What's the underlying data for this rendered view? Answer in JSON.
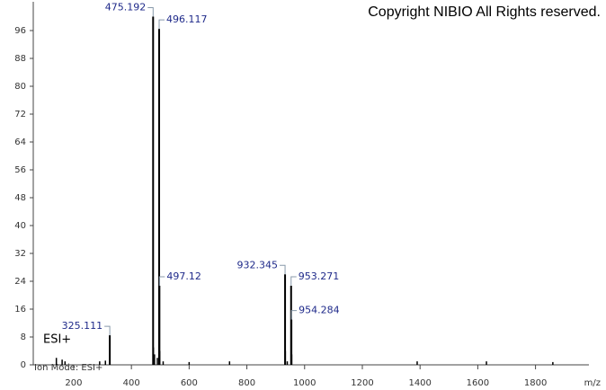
{
  "chart_data": {
    "type": "spectrum",
    "title": "Copyright NIBIO All Rights reserved.",
    "annotation": "ESI+",
    "footer": "Ion Mode: ESI+",
    "x_label": "m/z",
    "x": [
      325.111,
      475.192,
      496.117,
      497.12,
      932.345,
      953.271,
      954.284
    ],
    "values": [
      8.5,
      100,
      96.5,
      22.7,
      26,
      22.7,
      13
    ],
    "minor_x": [
      140,
      160,
      170,
      290,
      310,
      476.2,
      480,
      490,
      498.1,
      510,
      600,
      740,
      933.3,
      940,
      955.3,
      1390,
      1630,
      1860
    ],
    "minor_values": [
      2,
      1.5,
      1,
      1,
      1.2,
      5,
      3,
      2,
      4,
      1,
      0.8,
      1,
      4,
      1,
      3,
      1,
      1,
      0.8
    ],
    "color": "#000000",
    "label_color": "#1f2a8a",
    "xlim": [
      60,
      1985
    ],
    "ylim": [
      0,
      104
    ],
    "xticks": [
      200,
      400,
      600,
      800,
      1000,
      1200,
      1400,
      1600,
      1800
    ],
    "yticks": [
      0,
      8,
      16,
      24,
      32,
      40,
      48,
      56,
      64,
      72,
      80,
      88,
      96
    ]
  }
}
